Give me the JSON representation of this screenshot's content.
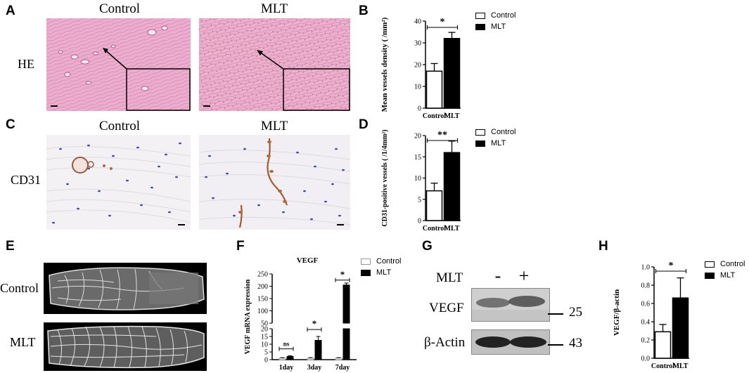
{
  "panels": {
    "A": {
      "label": "A",
      "col_headers": [
        "Control",
        "MLT"
      ],
      "row_label": "HE"
    },
    "B": {
      "label": "B",
      "legend": [
        {
          "name": "Control",
          "fill": "#ffffff"
        },
        {
          "name": "MLT",
          "fill": "#000000"
        }
      ]
    },
    "C": {
      "label": "C",
      "col_headers": [
        "Control",
        "MLT"
      ],
      "row_label": "CD31"
    },
    "D": {
      "label": "D",
      "legend": [
        {
          "name": "Control",
          "fill": "#ffffff"
        },
        {
          "name": "MLT",
          "fill": "#000000"
        }
      ]
    },
    "E": {
      "label": "E",
      "row_labels": [
        "Control",
        "MLT"
      ]
    },
    "F": {
      "label": "F",
      "legend": [
        {
          "name": "Control",
          "fill": "#ffffff"
        },
        {
          "name": "MLT",
          "fill": "#000000"
        }
      ]
    },
    "G": {
      "label": "G",
      "treatment_label": "MLT",
      "lane_signs": [
        "-",
        "+"
      ],
      "bands": [
        {
          "name": "VEGF",
          "size": "25"
        },
        {
          "name": "β-Actin",
          "size": "43"
        }
      ]
    },
    "H": {
      "label": "H",
      "legend": [
        {
          "name": "Control",
          "fill": "#ffffff"
        },
        {
          "name": "MLT",
          "fill": "#000000"
        }
      ]
    }
  },
  "chart_data": [
    {
      "id": "B",
      "type": "bar",
      "title": "",
      "ylabel": "Mean vessels density ( /mm²)",
      "xlabel": "",
      "categories": [
        "Control",
        "MLT"
      ],
      "values": [
        17,
        32
      ],
      "errors": [
        3.5,
        2.8
      ],
      "ylim": [
        0,
        40
      ],
      "yticks": [
        0,
        10,
        20,
        30,
        40
      ],
      "significance": "*",
      "legend_position": "top-right"
    },
    {
      "id": "D",
      "type": "bar",
      "title": "",
      "ylabel": "CD31-positive vessels ( /1/4mm²)",
      "xlabel": "",
      "categories": [
        "Control",
        "MLT"
      ],
      "values": [
        7,
        16
      ],
      "errors": [
        1.8,
        2.7
      ],
      "ylim": [
        0,
        20
      ],
      "yticks": [
        0,
        5,
        10,
        15,
        20
      ],
      "significance": "**",
      "legend_position": "top-right"
    },
    {
      "id": "F",
      "type": "bar",
      "title": "VEGF",
      "ylabel": "VEGF mRNA expression",
      "xlabel": "",
      "categories": [
        "1day",
        "3day",
        "7day"
      ],
      "series": [
        {
          "name": "Control",
          "values": [
            1,
            1,
            1
          ],
          "errors": [
            0.3,
            0.3,
            0.3
          ]
        },
        {
          "name": "MLT",
          "values": [
            2,
            12.5,
            205
          ],
          "errors": [
            0.5,
            2.5,
            8
          ]
        }
      ],
      "axis_break": {
        "lower": [
          0,
          20
        ],
        "upper": [
          50,
          250
        ]
      },
      "lower_ticks": [
        0,
        5,
        10,
        15,
        20
      ],
      "upper_ticks": [
        50,
        100,
        150,
        200,
        250
      ],
      "significance": [
        "ns",
        "*",
        "*"
      ],
      "legend_position": "top-right"
    },
    {
      "id": "H",
      "type": "bar",
      "title": "",
      "ylabel": "VEGF/β-actin",
      "xlabel": "",
      "categories": [
        "Control",
        "MLT"
      ],
      "values": [
        0.29,
        0.66
      ],
      "errors": [
        0.08,
        0.22
      ],
      "ylim": [
        0,
        1.0
      ],
      "yticks": [
        "0.0",
        "0.2",
        "0.4",
        "0.6",
        "0.8",
        "1.0"
      ],
      "significance": "*",
      "legend_position": "top-right"
    }
  ]
}
